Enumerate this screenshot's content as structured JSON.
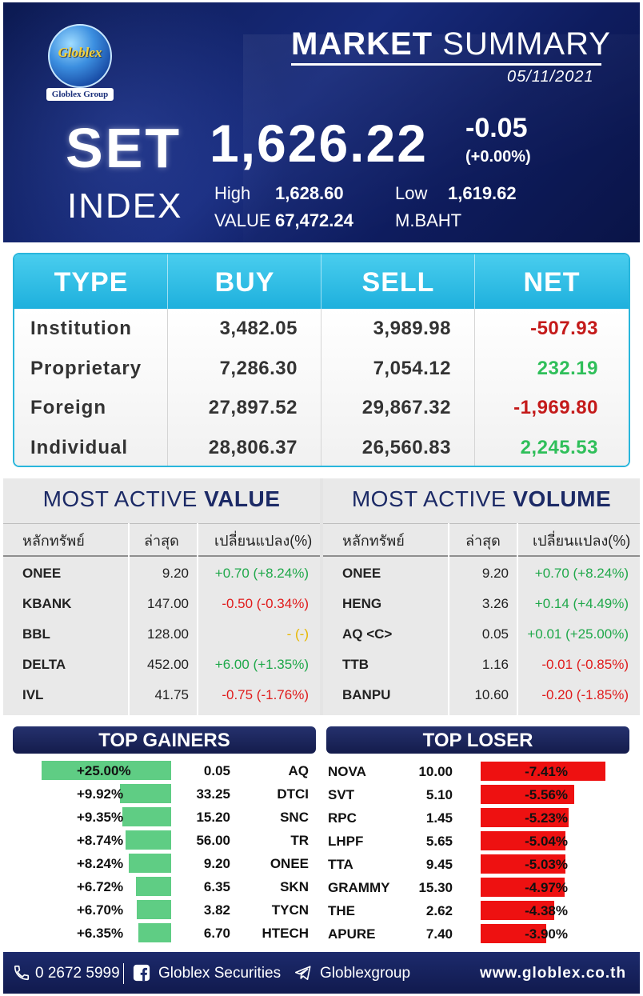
{
  "header": {
    "logo_text": "Globlex",
    "logo_sub": "Globlex Group",
    "title_bold": "MARKET",
    "title_light": "SUMMARY",
    "date": "05/11/2021",
    "set_label": "SET",
    "index_label": "INDEX",
    "set_value": "1,626.22",
    "set_change": "-0.05",
    "set_change_pct": "(+0.00%)",
    "high_label": "High",
    "high_value": "1,628.60",
    "low_label": "Low",
    "low_value": "1,619.62",
    "value_label": "VALUE",
    "value_value": "67,472.24",
    "value_unit": "M.BAHT"
  },
  "type_table": {
    "headers": [
      "TYPE",
      "BUY",
      "SELL",
      "NET"
    ],
    "rows": [
      {
        "type": "Institution",
        "buy": "3,482.05",
        "sell": "3,989.98",
        "net": "-507.93",
        "net_color": "#c41a1a"
      },
      {
        "type": "Proprietary",
        "buy": "7,286.30",
        "sell": "7,054.12",
        "net": "232.19",
        "net_color": "#2fbf5a"
      },
      {
        "type": "Foreign",
        "buy": "27,897.52",
        "sell": "29,867.32",
        "net": "-1,969.80",
        "net_color": "#c41a1a"
      },
      {
        "type": "Individual",
        "buy": "28,806.37",
        "sell": "26,560.83",
        "net": "2,245.53",
        "net_color": "#2fbf5a"
      }
    ]
  },
  "most_active_value": {
    "title_light": "MOST ACTIVE",
    "title_bold": "VALUE",
    "col_symbol": "หลักทรัพย์",
    "col_last": "ล่าสุด",
    "col_change": "เปลี่ยนแปลง(%)",
    "rows": [
      {
        "symbol": "ONEE",
        "last": "9.20",
        "change": "+0.70 (+8.24%)",
        "dir": "pos"
      },
      {
        "symbol": "KBANK",
        "last": "147.00",
        "change": "-0.50 (-0.34%)",
        "dir": "neg"
      },
      {
        "symbol": "BBL",
        "last": "128.00",
        "change": "- (-)",
        "dir": "neu"
      },
      {
        "symbol": "DELTA",
        "last": "452.00",
        "change": "+6.00 (+1.35%)",
        "dir": "pos"
      },
      {
        "symbol": "IVL",
        "last": "41.75",
        "change": "-0.75 (-1.76%)",
        "dir": "neg"
      }
    ]
  },
  "most_active_volume": {
    "title_light": "MOST ACTIVE",
    "title_bold": "VOLUME",
    "col_symbol": "หลักทรัพย์",
    "col_last": "ล่าสุด",
    "col_change": "เปลี่ยนแปลง(%)",
    "rows": [
      {
        "symbol": "ONEE",
        "last": "9.20",
        "change": "+0.70 (+8.24%)",
        "dir": "pos"
      },
      {
        "symbol": "HENG",
        "last": "3.26",
        "change": "+0.14 (+4.49%)",
        "dir": "pos"
      },
      {
        "symbol": "AQ <C>",
        "last": "0.05",
        "change": "+0.01 (+25.00%)",
        "dir": "pos"
      },
      {
        "symbol": "TTB",
        "last": "1.16",
        "change": "-0.01 (-0.85%)",
        "dir": "neg"
      },
      {
        "symbol": "BANPU",
        "last": "10.60",
        "change": "-0.20 (-1.85%)",
        "dir": "neg"
      }
    ]
  },
  "top_gainers": {
    "title": "TOP GAINERS",
    "bar_color": "#5fcd84",
    "rows": [
      {
        "pct": "+25.00%",
        "pct_value": 25.0,
        "price": "0.05",
        "symbol": "AQ"
      },
      {
        "pct": "+9.92%",
        "pct_value": 9.92,
        "price": "33.25",
        "symbol": "DTCI"
      },
      {
        "pct": "+9.35%",
        "pct_value": 9.35,
        "price": "15.20",
        "symbol": "SNC"
      },
      {
        "pct": "+8.74%",
        "pct_value": 8.74,
        "price": "56.00",
        "symbol": "TR"
      },
      {
        "pct": "+8.24%",
        "pct_value": 8.24,
        "price": "9.20",
        "symbol": "ONEE"
      },
      {
        "pct": "+6.72%",
        "pct_value": 6.72,
        "price": "6.35",
        "symbol": "SKN"
      },
      {
        "pct": "+6.70%",
        "pct_value": 6.7,
        "price": "3.82",
        "symbol": "TYCN"
      },
      {
        "pct": "+6.35%",
        "pct_value": 6.35,
        "price": "6.70",
        "symbol": "HTECH"
      }
    ]
  },
  "top_loser": {
    "title": "TOP LOSER",
    "bar_color": "#ee1111",
    "rows": [
      {
        "symbol": "NOVA",
        "price": "10.00",
        "pct": "-7.41%",
        "pct_value": 7.41
      },
      {
        "symbol": "SVT",
        "price": "5.10",
        "pct": "-5.56%",
        "pct_value": 5.56
      },
      {
        "symbol": "RPC",
        "price": "1.45",
        "pct": "-5.23%",
        "pct_value": 5.23
      },
      {
        "symbol": "LHPF",
        "price": "5.65",
        "pct": "-5.04%",
        "pct_value": 5.04
      },
      {
        "symbol": "TTA",
        "price": "9.45",
        "pct": "-5.03%",
        "pct_value": 5.03
      },
      {
        "symbol": "GRAMMY",
        "price": "15.30",
        "pct": "-4.97%",
        "pct_value": 4.97
      },
      {
        "symbol": "THE",
        "price": "2.62",
        "pct": "-4.38%",
        "pct_value": 4.38
      },
      {
        "symbol": "APURE",
        "price": "7.40",
        "pct": "-3.90%",
        "pct_value": 3.9
      }
    ]
  },
  "footer": {
    "phone": "0 2672 5999",
    "facebook": "Globlex Securities",
    "telegram": "Globlexgroup",
    "website": "www.globlex.co.th",
    "icons": [
      "phone-icon",
      "facebook-icon",
      "telegram-icon"
    ]
  }
}
